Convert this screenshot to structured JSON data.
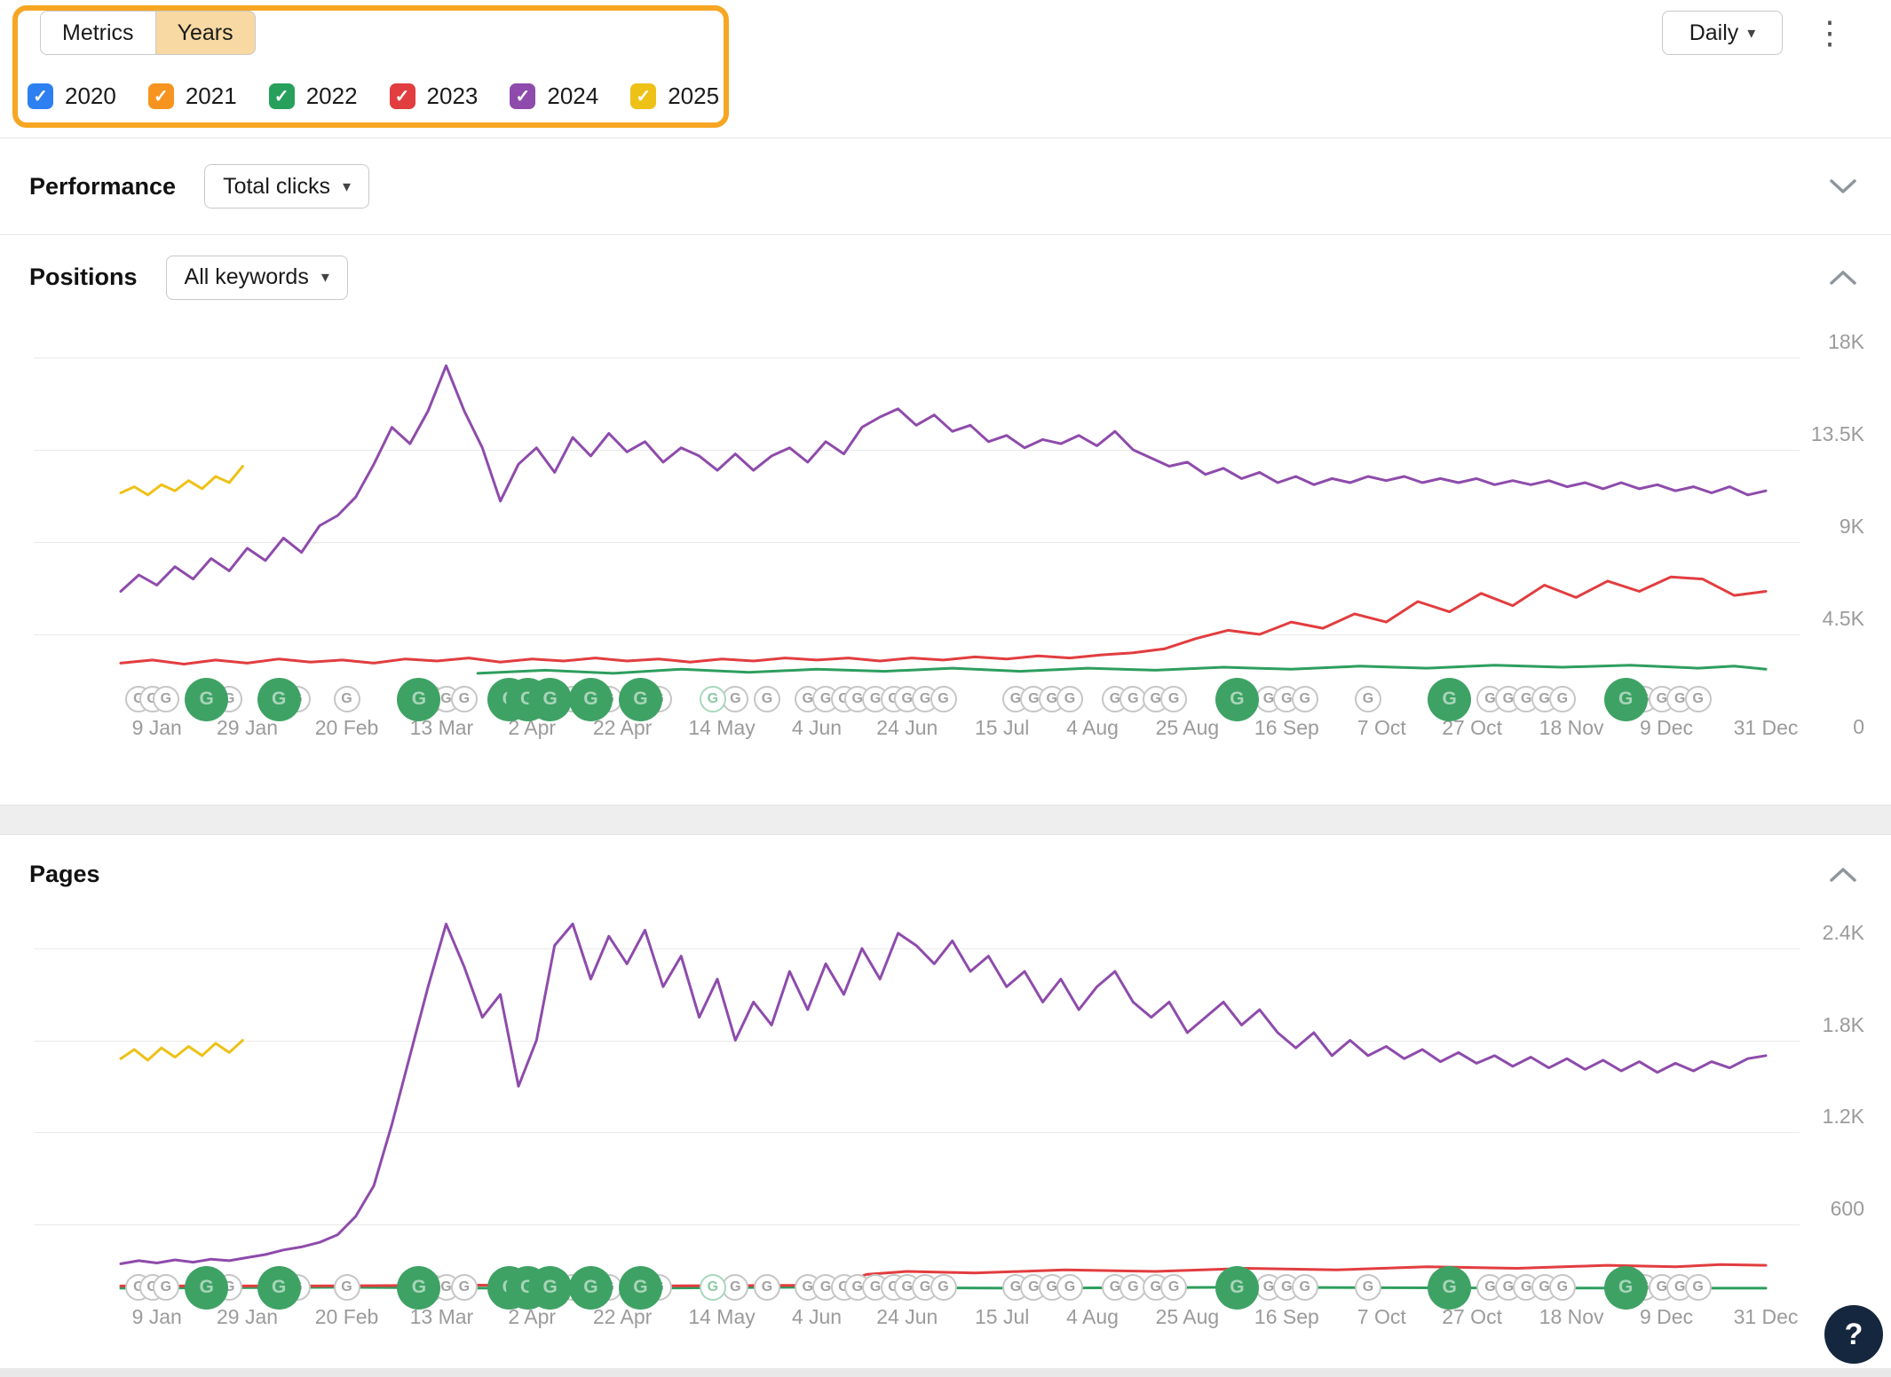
{
  "icons": {
    "caret_down": "▾",
    "kebab": "⋮",
    "check": "✓",
    "google": "G",
    "help": "?"
  },
  "topbar": {
    "tabs": {
      "metrics": "Metrics",
      "years": "Years"
    },
    "years": [
      {
        "label": "2020",
        "color": "#2e80f0",
        "checked": true
      },
      {
        "label": "2021",
        "color": "#f79420",
        "checked": true
      },
      {
        "label": "2022",
        "color": "#27a05c",
        "checked": true
      },
      {
        "label": "2023",
        "color": "#e23d3f",
        "checked": true
      },
      {
        "label": "2024",
        "color": "#8e4bab",
        "checked": true
      },
      {
        "label": "2025",
        "color": "#eec117",
        "checked": true
      }
    ],
    "granularity": {
      "label": "Daily"
    }
  },
  "performance": {
    "title": "Performance",
    "metric_dropdown": "Total clicks"
  },
  "positions_section": {
    "title": "Positions",
    "filter_dropdown": "All keywords"
  },
  "pages_section": {
    "title": "Pages"
  },
  "annotation": {
    "highlight_color": "#f6a623"
  },
  "google_updates": [
    {
      "day": 5,
      "kind": "small"
    },
    {
      "day": 8,
      "kind": "small"
    },
    {
      "day": 11,
      "kind": "small"
    },
    {
      "day": 20,
      "kind": "big"
    },
    {
      "day": 25,
      "kind": "small"
    },
    {
      "day": 36,
      "kind": "big"
    },
    {
      "day": 40,
      "kind": "small"
    },
    {
      "day": 51,
      "kind": "small"
    },
    {
      "day": 67,
      "kind": "big"
    },
    {
      "day": 70,
      "kind": "small"
    },
    {
      "day": 73,
      "kind": "small"
    },
    {
      "day": 77,
      "kind": "small"
    },
    {
      "day": 87,
      "kind": "big"
    },
    {
      "day": 91,
      "kind": "big"
    },
    {
      "day": 96,
      "kind": "big"
    },
    {
      "day": 101,
      "kind": "small"
    },
    {
      "day": 105,
      "kind": "big"
    },
    {
      "day": 109,
      "kind": "small"
    },
    {
      "day": 116,
      "kind": "big"
    },
    {
      "day": 120,
      "kind": "small"
    },
    {
      "day": 132,
      "kind": "light"
    },
    {
      "day": 137,
      "kind": "small"
    },
    {
      "day": 144,
      "kind": "small"
    },
    {
      "day": 153,
      "kind": "small"
    },
    {
      "day": 157,
      "kind": "small"
    },
    {
      "day": 161,
      "kind": "small"
    },
    {
      "day": 164,
      "kind": "small"
    },
    {
      "day": 168,
      "kind": "small"
    },
    {
      "day": 172,
      "kind": "small"
    },
    {
      "day": 175,
      "kind": "small"
    },
    {
      "day": 179,
      "kind": "small"
    },
    {
      "day": 183,
      "kind": "small"
    },
    {
      "day": 199,
      "kind": "small"
    },
    {
      "day": 203,
      "kind": "small"
    },
    {
      "day": 207,
      "kind": "small"
    },
    {
      "day": 211,
      "kind": "small"
    },
    {
      "day": 221,
      "kind": "small"
    },
    {
      "day": 225,
      "kind": "small"
    },
    {
      "day": 230,
      "kind": "small"
    },
    {
      "day": 234,
      "kind": "small"
    },
    {
      "day": 248,
      "kind": "big"
    },
    {
      "day": 255,
      "kind": "small"
    },
    {
      "day": 259,
      "kind": "small"
    },
    {
      "day": 263,
      "kind": "small"
    },
    {
      "day": 277,
      "kind": "small"
    },
    {
      "day": 295,
      "kind": "big"
    },
    {
      "day": 304,
      "kind": "small"
    },
    {
      "day": 308,
      "kind": "small"
    },
    {
      "day": 312,
      "kind": "small"
    },
    {
      "day": 316,
      "kind": "small"
    },
    {
      "day": 320,
      "kind": "small"
    },
    {
      "day": 334,
      "kind": "big"
    },
    {
      "day": 338,
      "kind": "small"
    },
    {
      "day": 342,
      "kind": "small"
    },
    {
      "day": 346,
      "kind": "small"
    },
    {
      "day": 350,
      "kind": "small"
    }
  ],
  "chart_data": [
    {
      "id": "positions",
      "type": "line",
      "title": "Positions",
      "x_domain": [
        1,
        365
      ],
      "x_tick_labels": [
        "9 Jan",
        "29 Jan",
        "20 Feb",
        "13 Mar",
        "2 Apr",
        "22 Apr",
        "14 May",
        "4 Jun",
        "24 Jun",
        "15 Jul",
        "4 Aug",
        "25 Aug",
        "16 Sep",
        "7 Oct",
        "27 Oct",
        "18 Nov",
        "9 Dec",
        "31 Dec"
      ],
      "x_tick_days": [
        9,
        29,
        51,
        72,
        92,
        112,
        134,
        155,
        175,
        196,
        216,
        237,
        259,
        280,
        300,
        322,
        343,
        365
      ],
      "y_ticks": [
        {
          "label": "18K",
          "value": 18000
        },
        {
          "label": "13.5K",
          "value": 13500
        },
        {
          "label": "9K",
          "value": 9000
        },
        {
          "label": "4.5K",
          "value": 4500
        },
        {
          "label": "0",
          "value": 0
        }
      ],
      "series": [
        {
          "name": "2022",
          "color": "#2e9e5e",
          "points": [
            [
              80,
              2600
            ],
            [
              95,
              2750
            ],
            [
              110,
              2600
            ],
            [
              125,
              2800
            ],
            [
              140,
              2650
            ],
            [
              155,
              2800
            ],
            [
              170,
              2700
            ],
            [
              185,
              2850
            ],
            [
              200,
              2700
            ],
            [
              215,
              2850
            ],
            [
              230,
              2750
            ],
            [
              245,
              2900
            ],
            [
              260,
              2800
            ],
            [
              275,
              2950
            ],
            [
              290,
              2850
            ],
            [
              305,
              3000
            ],
            [
              320,
              2900
            ],
            [
              335,
              3000
            ],
            [
              350,
              2850
            ],
            [
              358,
              2950
            ],
            [
              365,
              2800
            ]
          ]
        },
        {
          "name": "2023",
          "color": "#e23d3f",
          "start_day": 1,
          "step": 7,
          "values": [
            3100,
            3250,
            3050,
            3250,
            3100,
            3300,
            3150,
            3250,
            3100,
            3300,
            3200,
            3350,
            3150,
            3300,
            3200,
            3350,
            3200,
            3300,
            3150,
            3300,
            3200,
            3350,
            3250,
            3350,
            3200,
            3350,
            3250,
            3400,
            3300,
            3450,
            3350,
            3500,
            3600,
            3800,
            4300,
            4700,
            4500,
            5100,
            4800,
            5500,
            5100,
            6100,
            5600,
            6500,
            5900,
            6900,
            6300,
            7100,
            6600,
            7300,
            7200,
            6400,
            6600
          ]
        },
        {
          "name": "2024",
          "color": "#8e4bab",
          "start_day": 1,
          "step": 4,
          "values": [
            6600,
            7400,
            6900,
            7800,
            7200,
            8200,
            7600,
            8700,
            8100,
            9200,
            8500,
            9800,
            10300,
            11200,
            12800,
            14600,
            13800,
            15400,
            17600,
            15400,
            13600,
            11000,
            12800,
            13600,
            12400,
            14100,
            13200,
            14300,
            13400,
            13900,
            12900,
            13600,
            13200,
            12500,
            13300,
            12500,
            13200,
            13600,
            12900,
            13900,
            13300,
            14600,
            15100,
            15500,
            14700,
            15200,
            14400,
            14700,
            13900,
            14200,
            13600,
            14000,
            13800,
            14200,
            13700,
            14400,
            13500,
            13100,
            12700,
            12900,
            12300,
            12600,
            12100,
            12400,
            11900,
            12200,
            11800,
            12100,
            11900,
            12200,
            12000,
            12200,
            11900,
            12100,
            11900,
            12100,
            11800,
            12000,
            11800,
            12000,
            11700,
            11900,
            11600,
            11900,
            11600,
            11800,
            11500,
            11700,
            11400,
            11700,
            11300,
            11500
          ]
        },
        {
          "name": "2025",
          "color": "#eec117",
          "start_day": 1,
          "step": 3,
          "values": [
            11400,
            11700,
            11300,
            11800,
            11500,
            12000,
            11600,
            12200,
            11900,
            12700
          ]
        }
      ]
    },
    {
      "id": "pages",
      "type": "line",
      "title": "Pages",
      "x_domain": [
        1,
        365
      ],
      "x_tick_labels": [
        "9 Jan",
        "29 Jan",
        "20 Feb",
        "13 Mar",
        "2 Apr",
        "22 Apr",
        "14 May",
        "4 Jun",
        "24 Jun",
        "15 Jul",
        "4 Aug",
        "25 Aug",
        "16 Sep",
        "7 Oct",
        "27 Oct",
        "18 Nov",
        "9 Dec",
        "31 Dec"
      ],
      "x_tick_days": [
        9,
        29,
        51,
        72,
        92,
        112,
        134,
        155,
        175,
        196,
        216,
        237,
        259,
        280,
        300,
        322,
        343,
        365
      ],
      "y_ticks": [
        {
          "label": "2.4K",
          "value": 2400
        },
        {
          "label": "1.8K",
          "value": 1800
        },
        {
          "label": "1.2K",
          "value": 1200
        },
        {
          "label": "600",
          "value": 600
        }
      ],
      "series": [
        {
          "name": "2022",
          "color": "#2e9e5e",
          "points": [
            [
              1,
              180
            ],
            [
              50,
              186
            ],
            [
              100,
              178
            ],
            [
              150,
              186
            ],
            [
              200,
              180
            ],
            [
              250,
              186
            ],
            [
              300,
              182
            ],
            [
              365,
              180
            ]
          ]
        },
        {
          "name": "2023",
          "color": "#e23d3f",
          "points": [
            [
              1,
              195
            ],
            [
              40,
              195
            ],
            [
              80,
              200
            ],
            [
              120,
              195
            ],
            [
              160,
              200
            ],
            [
              166,
              270
            ],
            [
              175,
              290
            ],
            [
              190,
              280
            ],
            [
              210,
              300
            ],
            [
              230,
              290
            ],
            [
              250,
              310
            ],
            [
              270,
              300
            ],
            [
              290,
              320
            ],
            [
              310,
              310
            ],
            [
              330,
              330
            ],
            [
              345,
              320
            ],
            [
              355,
              335
            ],
            [
              365,
              330
            ]
          ]
        },
        {
          "name": "2024",
          "color": "#8e4bab",
          "start_day": 1,
          "step": 4,
          "values": [
            340,
            360,
            345,
            365,
            350,
            370,
            360,
            380,
            400,
            430,
            450,
            480,
            530,
            650,
            850,
            1250,
            1700,
            2150,
            2560,
            2280,
            1950,
            2100,
            1500,
            1800,
            2420,
            2560,
            2200,
            2480,
            2300,
            2520,
            2150,
            2350,
            1950,
            2200,
            1800,
            2050,
            1900,
            2250,
            2000,
            2300,
            2100,
            2400,
            2200,
            2500,
            2420,
            2300,
            2450,
            2250,
            2350,
            2150,
            2250,
            2050,
            2200,
            2000,
            2150,
            2250,
            2050,
            1950,
            2050,
            1850,
            1950,
            2050,
            1900,
            2000,
            1850,
            1750,
            1850,
            1700,
            1800,
            1700,
            1760,
            1680,
            1740,
            1660,
            1720,
            1650,
            1700,
            1630,
            1690,
            1620,
            1680,
            1610,
            1670,
            1600,
            1660,
            1590,
            1650,
            1600,
            1660,
            1620,
            1680,
            1700
          ]
        },
        {
          "name": "2025",
          "color": "#eec117",
          "start_day": 1,
          "step": 3,
          "values": [
            1680,
            1740,
            1670,
            1750,
            1690,
            1760,
            1700,
            1780,
            1720,
            1800
          ]
        }
      ]
    }
  ]
}
